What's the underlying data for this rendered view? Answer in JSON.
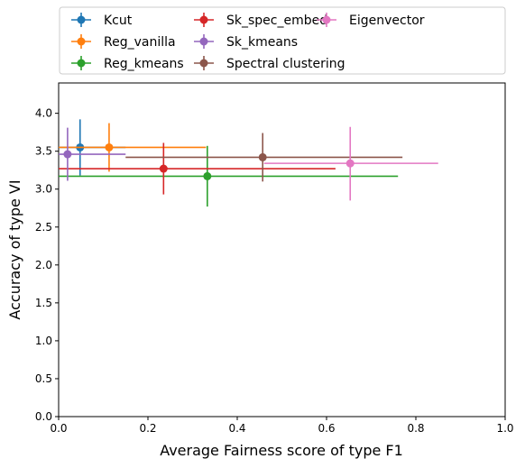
{
  "chart_data": {
    "type": "scatter",
    "title": "",
    "xlabel": "Average Fairness score of type F1",
    "ylabel": "Accuracy of type VI",
    "xlim": [
      0.0,
      1.0
    ],
    "ylim": [
      0.0,
      4.4
    ],
    "xticks": [
      "0.0",
      "0.2",
      "0.4",
      "0.6",
      "0.8",
      "1.0"
    ],
    "yticks": [
      "0.0",
      "0.5",
      "1.0",
      "1.5",
      "2.0",
      "2.5",
      "3.0",
      "3.5",
      "4.0"
    ],
    "grid": false,
    "legend_position": "top, outside plot, 3 columns",
    "series": [
      {
        "name": "Kcut",
        "color": "#1f77b4",
        "x": 0.048,
        "y": 3.55,
        "x_err": [
          0.0,
          0.15
        ],
        "y_err": [
          3.18,
          3.92
        ]
      },
      {
        "name": "Reg_vanilla",
        "color": "#ff7f0e",
        "x": 0.113,
        "y": 3.55,
        "x_err": [
          0.0,
          0.33
        ],
        "y_err": [
          3.23,
          3.87
        ]
      },
      {
        "name": "Reg_kmeans",
        "color": "#2ca02c",
        "x": 0.333,
        "y": 3.17,
        "x_err": [
          0.0,
          0.76
        ],
        "y_err": [
          2.77,
          3.57
        ]
      },
      {
        "name": "Sk_spec_embed",
        "color": "#d62728",
        "x": 0.235,
        "y": 3.27,
        "x_err": [
          0.0,
          0.62
        ],
        "y_err": [
          2.93,
          3.61
        ]
      },
      {
        "name": "Sk_kmeans",
        "color": "#9467bd",
        "x": 0.02,
        "y": 3.46,
        "x_err": [
          0.0,
          0.15
        ],
        "y_err": [
          3.11,
          3.81
        ]
      },
      {
        "name": "Spectral clustering",
        "color": "#8c564b",
        "x": 0.457,
        "y": 3.42,
        "x_err": [
          0.15,
          0.77
        ],
        "y_err": [
          3.1,
          3.74
        ]
      },
      {
        "name": "Eigenvector",
        "color": "#e377c2",
        "x": 0.653,
        "y": 3.34,
        "x_err": [
          0.46,
          0.85
        ],
        "y_err": [
          2.85,
          3.82
        ]
      }
    ]
  }
}
